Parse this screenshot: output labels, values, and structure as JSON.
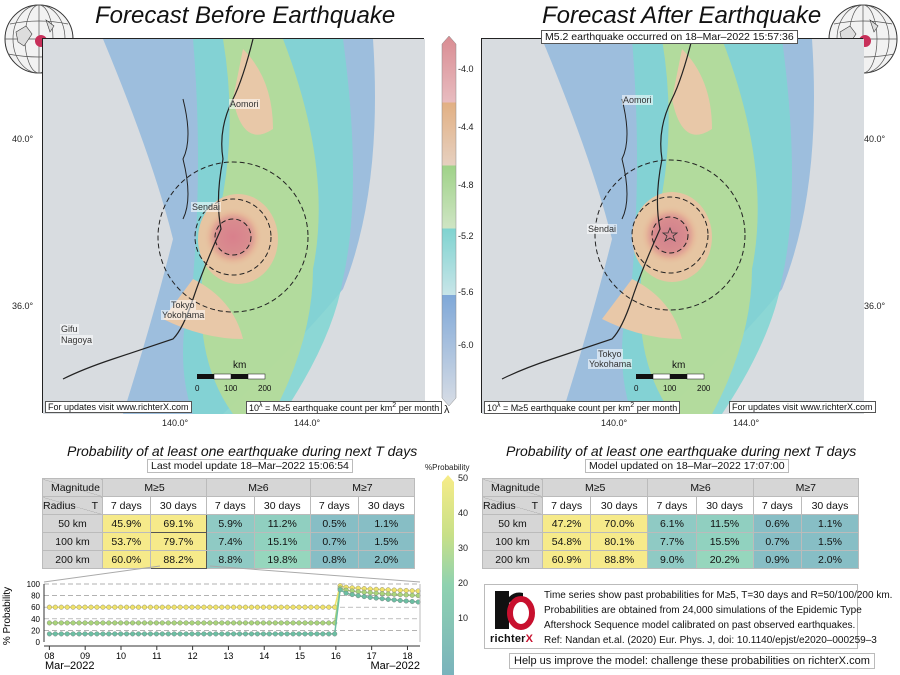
{
  "left_panel": {
    "title": "Forecast Before Earthquake",
    "cities": [
      "Aomori",
      "Sendai",
      "Tokyo",
      "Yokohama",
      "Gifu",
      "Nagoya"
    ],
    "lat_labels": [
      "40.0°",
      "36.0°"
    ],
    "lon_labels": [
      "140.0°",
      "144.0°"
    ],
    "scale": {
      "unit": "km",
      "ticks": [
        "0",
        "100",
        "200"
      ]
    },
    "note_left": "For updates visit www.richterX.com",
    "note_right": "10^λ = M≥5 earthquake count per km² per month",
    "subtitle": "Probability of at least one earthquake during next T days",
    "update": "Last model update 18–Mar–2022 15:06:54",
    "table": {
      "corner_top": "Magnitude",
      "corner_bottom_left": "Radius",
      "corner_bottom_right": "T",
      "magnitudes": [
        "M≥5",
        "M≥6",
        "M≥7"
      ],
      "periods": [
        "7 days",
        "30 days",
        "7 days",
        "30 days",
        "7 days",
        "30 days"
      ],
      "rows": [
        {
          "radius": "50 km",
          "values": [
            "45.9%",
            "69.1%",
            "5.9%",
            "11.2%",
            "0.5%",
            "1.1%"
          ]
        },
        {
          "radius": "100 km",
          "values": [
            "53.7%",
            "79.7%",
            "7.4%",
            "15.1%",
            "0.7%",
            "1.5%"
          ]
        },
        {
          "radius": "200 km",
          "values": [
            "60.0%",
            "88.2%",
            "8.8%",
            "19.8%",
            "0.8%",
            "2.0%"
          ]
        }
      ]
    }
  },
  "right_panel": {
    "title": "Forecast After Earthquake",
    "quake_banner": "M5.2 earthquake occurred on 18–Mar–2022 15:57:36",
    "cities": [
      "Aomori",
      "Sendai",
      "Tokyo",
      "Yokohama"
    ],
    "lat_labels": [
      "40.0°",
      "36.0°"
    ],
    "lon_labels": [
      "140.0°",
      "144.0°"
    ],
    "scale": {
      "unit": "km",
      "ticks": [
        "0",
        "100",
        "200"
      ]
    },
    "note_left": "10^λ = M≥5 earthquake count per km² per month",
    "note_right": "For updates visit www.richterX.com",
    "subtitle": "Probability of at least one earthquake during next T days",
    "update": "Model updated on 18–Mar–2022 17:07:00",
    "table": {
      "corner_top": "Magnitude",
      "corner_bottom_left": "Radius",
      "corner_bottom_right": "T",
      "magnitudes": [
        "M≥5",
        "M≥6",
        "M≥7"
      ],
      "periods": [
        "7 days",
        "30 days",
        "7 days",
        "30 days",
        "7 days",
        "30 days"
      ],
      "rows": [
        {
          "radius": "50 km",
          "values": [
            "47.2%",
            "70.0%",
            "6.1%",
            "11.5%",
            "0.6%",
            "1.1%"
          ]
        },
        {
          "radius": "100 km",
          "values": [
            "54.8%",
            "80.1%",
            "7.7%",
            "15.5%",
            "0.7%",
            "1.5%"
          ]
        },
        {
          "radius": "200 km",
          "values": [
            "60.9%",
            "88.8%",
            "9.0%",
            "20.2%",
            "0.9%",
            "2.0%"
          ]
        }
      ]
    }
  },
  "lambda_colorbar": {
    "label": "λ",
    "ticks": [
      "-4.0",
      "-4.4",
      "-4.8",
      "-5.2",
      "-5.6",
      "-6.0"
    ]
  },
  "prob_colorbar": {
    "label": "%Probability",
    "ticks": [
      "50",
      "40",
      "30",
      "20",
      "10"
    ]
  },
  "info": {
    "logo_text": "richterX",
    "lines": [
      "Time series show past probabilities for M≥5, T=30 days and R=50/100/200 km.",
      "Probabilities are obtained from 24,000 simulations of the Epidemic Type",
      "Aftershock Sequence model calibrated on past observed earthquakes.",
      "Ref: Nandan et.al. (2020) Eur. Phys. J, doi: 10.1140/epjst/e2020–000259–3"
    ],
    "help": "Help us improve the model: challenge these probabilities on richterX.com"
  },
  "chart_data": {
    "type": "line",
    "title": "",
    "xlabel": "",
    "ylabel": "% Probability",
    "ylim": [
      0,
      100
    ],
    "yticks": [
      "0",
      "20",
      "40",
      "60",
      "80",
      "100"
    ],
    "xticks": [
      "08",
      "09",
      "10",
      "11",
      "12",
      "13",
      "14",
      "15",
      "16",
      "17",
      "18"
    ],
    "x_start_label": "Mar–2022",
    "x_end_label": "Mar–2022",
    "grid": true,
    "series": [
      {
        "name": "R=200 km",
        "color": "#f0e36a",
        "before": 60,
        "after_start": 97,
        "after_end": 88
      },
      {
        "name": "R=100 km",
        "color": "#a9d47a",
        "before": 33,
        "after_start": 93,
        "after_end": 80
      },
      {
        "name": "R=50 km",
        "color": "#6cbfa3",
        "before": 14,
        "after_start": 90,
        "after_end": 69
      }
    ]
  }
}
